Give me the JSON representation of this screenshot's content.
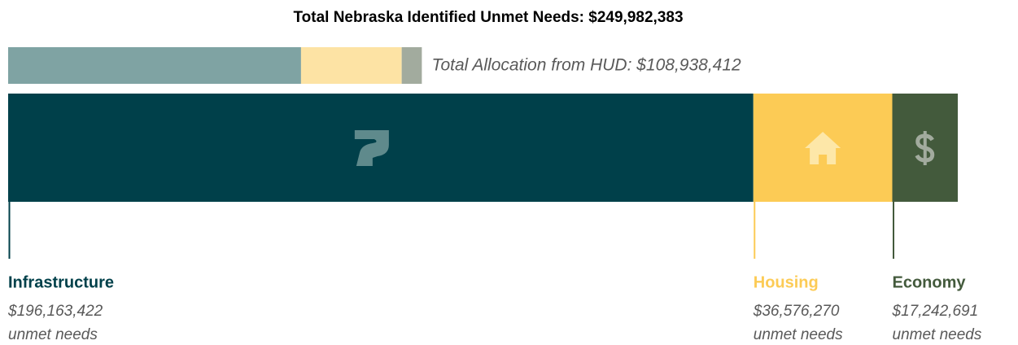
{
  "chart_data": {
    "type": "stacked_bar",
    "title": "Total Nebraska Identified  Unmet Needs: $249,982,383",
    "xlim": [
      0,
      249982383
    ],
    "unit_label": "unmet needs",
    "series": [
      {
        "name": "Infrastructure",
        "color": "#00404a",
        "values": [
          196163422
        ],
        "value_labels": [
          "$196,163,422"
        ]
      },
      {
        "name": "Housing",
        "color": "#fccb55",
        "values": [
          36576270
        ],
        "value_labels": [
          "$36,576,270"
        ]
      },
      {
        "name": "Economy",
        "color": "#435a3c",
        "values": [
          17242691
        ],
        "value_labels": [
          "$17,242,691"
        ]
      }
    ],
    "allocation": {
      "label": "Total Allocation from HUD: $108,938,412",
      "total": 108938412,
      "values": [
        77100000,
        26500000,
        5300000
      ],
      "colors": [
        "#7fa3a3",
        "#fde3a4",
        "#a2ab9e"
      ]
    }
  }
}
